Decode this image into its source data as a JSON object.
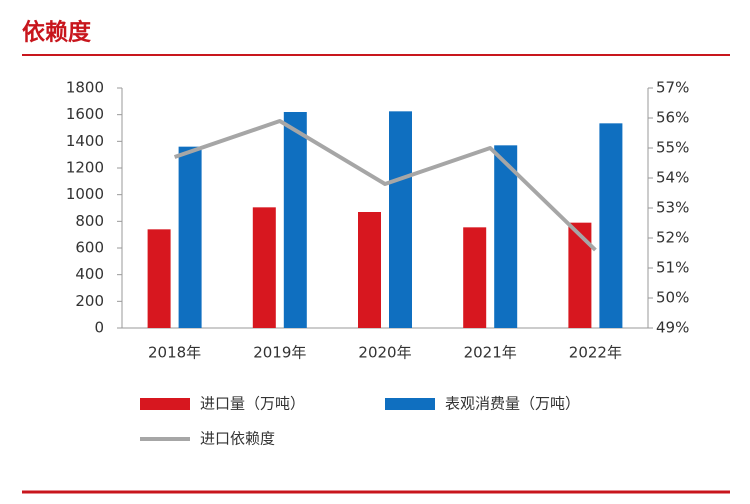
{
  "chart_data": {
    "type": "bar-line",
    "title": "依赖度",
    "categories": [
      "2018年",
      "2019年",
      "2020年",
      "2021年",
      "2022年"
    ],
    "series": [
      {
        "name": "进口量（万吨）",
        "color": "#d7171f",
        "type": "bar",
        "values": [
          740,
          905,
          870,
          755,
          790
        ]
      },
      {
        "name": "表观消费量（万吨）",
        "color": "#0f6fc0",
        "type": "bar",
        "values": [
          1360,
          1620,
          1625,
          1370,
          1535
        ]
      },
      {
        "name": "进口依赖度",
        "color": "#a6a6a6",
        "type": "line",
        "axis": "y2",
        "values": [
          54.7,
          55.9,
          53.8,
          55.0,
          51.6
        ]
      }
    ],
    "ylim": [
      0,
      1800
    ],
    "yticks": [
      0,
      200,
      400,
      600,
      800,
      1000,
      1200,
      1400,
      1600,
      1800
    ],
    "y2lim": [
      49,
      57
    ],
    "y2ticks": [
      {
        "value": 49,
        "label": "49%"
      },
      {
        "value": 50,
        "label": "50%"
      },
      {
        "value": 51,
        "label": "51%"
      },
      {
        "value": 52,
        "label": "52%"
      },
      {
        "value": 53,
        "label": "53%"
      },
      {
        "value": 54,
        "label": "54%"
      },
      {
        "value": 55,
        "label": "55%"
      },
      {
        "value": 56,
        "label": "56%"
      },
      {
        "value": 57,
        "label": "57%"
      }
    ],
    "grid": false
  }
}
